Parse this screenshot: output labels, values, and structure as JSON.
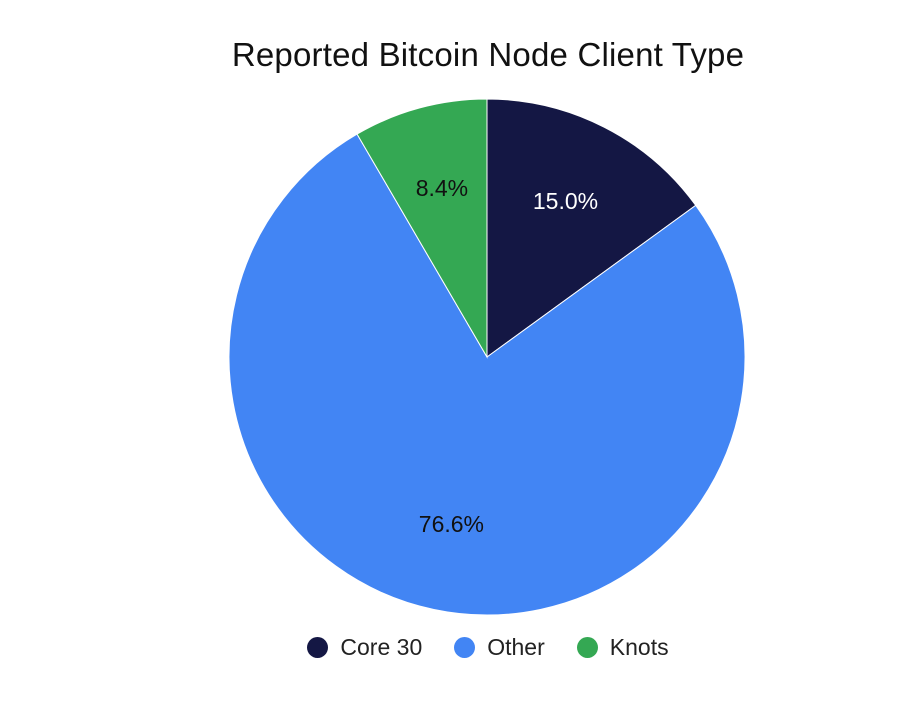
{
  "chart_data": {
    "type": "pie",
    "title": "Reported Bitcoin Node Client Type",
    "legend_position": "bottom",
    "slices": [
      {
        "name": "Core 30",
        "value": 15.0,
        "label": "15.0%",
        "color": "#141744",
        "label_color": "#ffffff"
      },
      {
        "name": "Other",
        "value": 76.6,
        "label": "76.6%",
        "color": "#4285f4",
        "label_color": "#111111"
      },
      {
        "name": "Knots",
        "value": 8.4,
        "label": "8.4%",
        "color": "#34a853",
        "label_color": "#111111"
      }
    ]
  }
}
